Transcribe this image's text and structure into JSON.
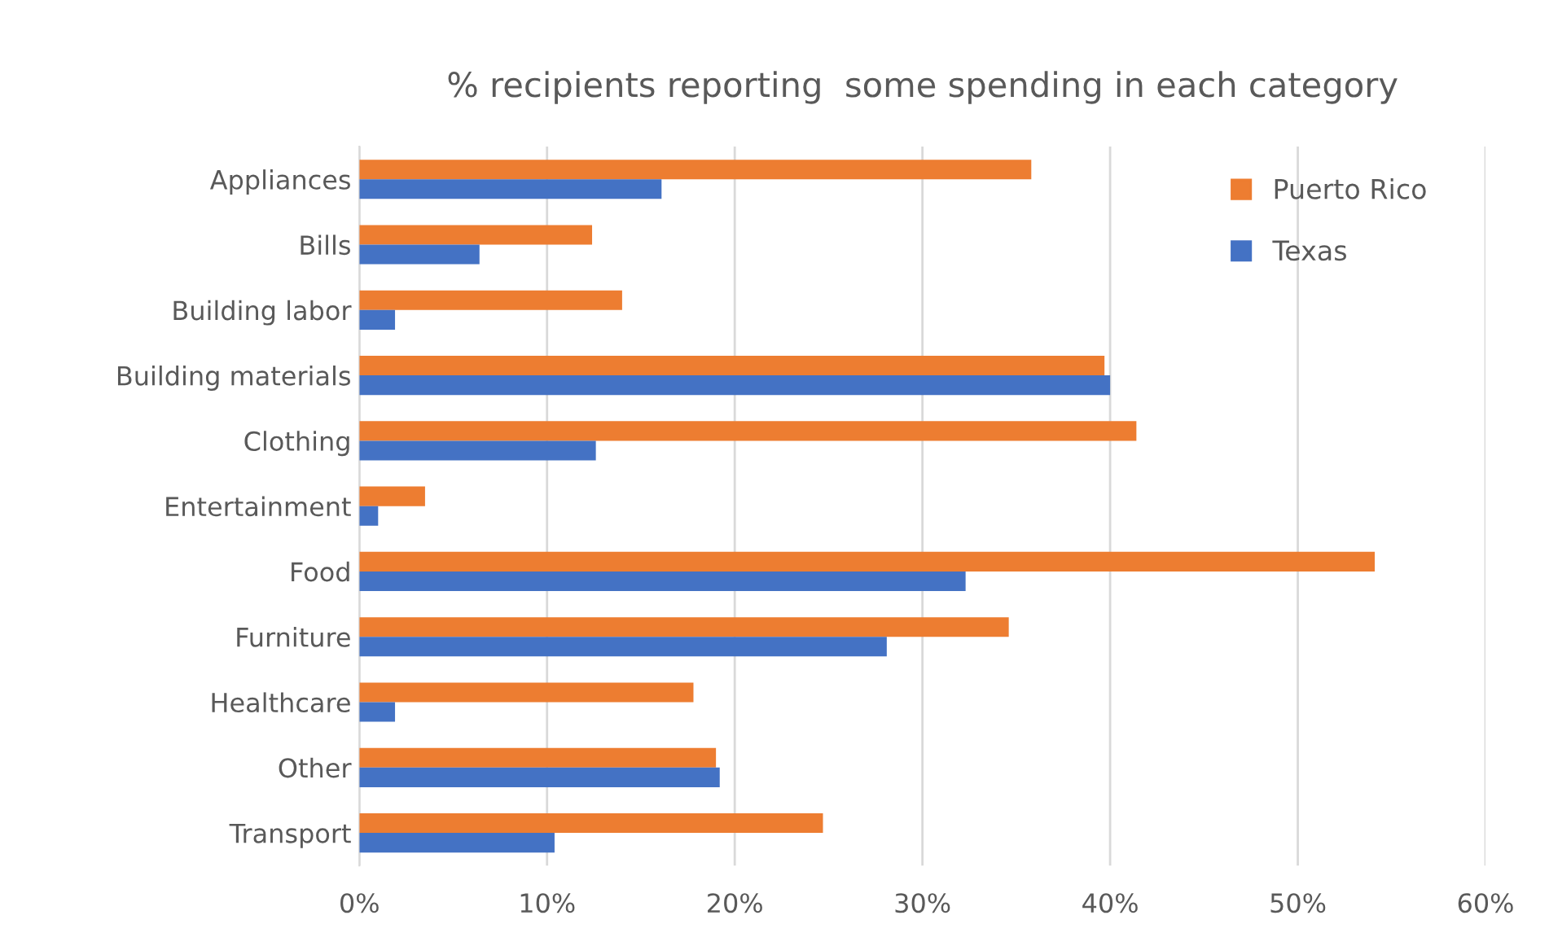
{
  "chart_data": {
    "type": "bar",
    "orientation": "horizontal",
    "title": "% recipients reporting  some spending in each category",
    "categories": [
      "Appliances",
      "Bills",
      "Building labor",
      "Building materials",
      "Clothing",
      "Entertainment",
      "Food",
      "Furniture",
      "Healthcare",
      "Other",
      "Transport"
    ],
    "series": [
      {
        "name": "Puerto Rico",
        "color": "#ed7d31",
        "values": [
          35.8,
          12.4,
          14.0,
          39.7,
          41.4,
          3.5,
          54.1,
          34.6,
          17.8,
          19.0,
          24.7
        ]
      },
      {
        "name": "Texas",
        "color": "#4472c4",
        "values": [
          16.1,
          6.4,
          1.9,
          40.0,
          12.6,
          1.0,
          32.3,
          28.1,
          1.9,
          19.2,
          10.4
        ]
      }
    ],
    "xlim": [
      0,
      60
    ],
    "xticks": [
      {
        "value": 0,
        "label": "0%"
      },
      {
        "value": 10,
        "label": "10%"
      },
      {
        "value": 20,
        "label": "20%"
      },
      {
        "value": 30,
        "label": "30%"
      },
      {
        "value": 40,
        "label": "40%"
      },
      {
        "value": 50,
        "label": "50%"
      },
      {
        "value": 60,
        "label": "60%"
      }
    ],
    "grid": "x",
    "legend": "top right"
  }
}
